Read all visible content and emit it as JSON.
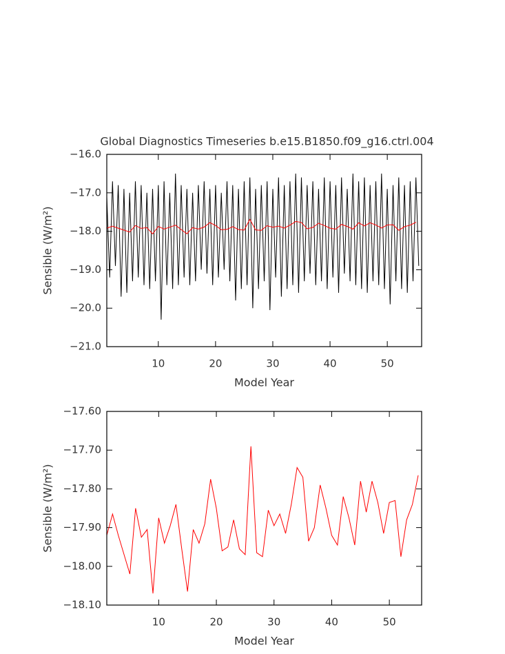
{
  "chart_data": [
    {
      "type": "line",
      "title": "Global Diagnostics Timeseries b.e15.B1850.f09_g16.ctrl.004",
      "x_label": "Model Year",
      "y_label": "Sensible (W/m²)",
      "xlim": [
        1,
        56
      ],
      "xticks": [
        10,
        20,
        30,
        40,
        50
      ],
      "ylim": [
        -21,
        -16
      ],
      "yticks": [
        {
          "value": -21,
          "label": "−21.0"
        },
        {
          "value": -20,
          "label": "−20.0"
        },
        {
          "value": -19,
          "label": "−19.0"
        },
        {
          "value": -18,
          "label": "−18.0"
        },
        {
          "value": -17,
          "label": "−17.0"
        },
        {
          "value": -16,
          "label": "−16.0"
        }
      ],
      "series": [
        {
          "color": "#000000",
          "x": [
            1,
            1.5,
            2,
            2.5,
            3,
            3.5,
            4,
            4.5,
            5,
            5.5,
            6,
            6.5,
            7,
            7.5,
            8,
            8.5,
            9,
            9.5,
            10,
            10.5,
            11,
            11.5,
            12,
            12.5,
            13,
            13.5,
            14,
            14.5,
            15,
            15.5,
            16,
            16.5,
            17,
            17.5,
            18,
            18.5,
            19,
            19.5,
            20,
            20.5,
            21,
            21.5,
            22,
            22.5,
            23,
            23.5,
            24,
            24.5,
            25,
            25.5,
            26,
            26.5,
            27,
            27.5,
            28,
            28.5,
            29,
            29.5,
            30,
            30.5,
            31,
            31.5,
            32,
            32.5,
            33,
            33.5,
            34,
            34.5,
            35,
            35.5,
            36,
            36.5,
            37,
            37.5,
            38,
            38.5,
            39,
            39.5,
            40,
            40.5,
            41,
            41.5,
            42,
            42.5,
            43,
            43.5,
            44,
            44.5,
            45,
            45.5,
            46,
            46.5,
            47,
            47.5,
            48,
            48.5,
            49,
            49.5,
            50,
            50.5,
            51,
            51.5,
            52,
            52.5,
            53,
            53.5,
            54,
            54.5,
            55,
            55.5
          ],
          "values": [
            -17.1,
            -19.2,
            -16.7,
            -18.9,
            -16.8,
            -19.7,
            -16.9,
            -19.6,
            -17.0,
            -19.3,
            -16.7,
            -19.2,
            -16.8,
            -19.4,
            -17.0,
            -19.5,
            -16.9,
            -19.3,
            -16.8,
            -20.3,
            -16.7,
            -19.4,
            -17.0,
            -19.5,
            -16.5,
            -19.4,
            -16.8,
            -19.2,
            -16.9,
            -19.4,
            -17.0,
            -19.3,
            -16.8,
            -19.0,
            -16.7,
            -19.1,
            -16.9,
            -19.4,
            -16.8,
            -19.2,
            -17.0,
            -19.0,
            -16.7,
            -19.3,
            -16.8,
            -19.8,
            -16.9,
            -19.5,
            -16.7,
            -19.4,
            -16.6,
            -20.0,
            -16.9,
            -19.5,
            -16.8,
            -19.3,
            -16.7,
            -20.05,
            -16.9,
            -19.2,
            -16.6,
            -19.7,
            -16.8,
            -19.5,
            -16.7,
            -19.4,
            -16.5,
            -19.6,
            -16.6,
            -19.3,
            -16.8,
            -19.1,
            -16.7,
            -19.4,
            -16.9,
            -19.3,
            -16.6,
            -19.5,
            -16.7,
            -19.2,
            -16.8,
            -19.6,
            -16.6,
            -19.1,
            -16.9,
            -19.3,
            -16.5,
            -19.4,
            -16.7,
            -19.5,
            -16.6,
            -19.6,
            -16.8,
            -19.3,
            -16.7,
            -19.4,
            -16.5,
            -19.5,
            -16.9,
            -19.9,
            -16.8,
            -19.3,
            -16.6,
            -19.5,
            -16.8,
            -19.6,
            -16.7,
            -19.3,
            -16.6,
            -18.9
          ]
        },
        {
          "color": "#ff0000",
          "x": [
            1,
            2,
            3,
            4,
            5,
            6,
            7,
            8,
            9,
            10,
            11,
            12,
            13,
            14,
            15,
            16,
            17,
            18,
            19,
            20,
            21,
            22,
            23,
            24,
            25,
            26,
            27,
            28,
            29,
            30,
            31,
            32,
            33,
            34,
            35,
            36,
            37,
            38,
            39,
            40,
            41,
            42,
            43,
            44,
            45,
            46,
            47,
            48,
            49,
            50,
            51,
            52,
            53,
            54,
            55
          ],
          "values": [
            -17.92,
            -17.865,
            -17.92,
            -17.97,
            -18.02,
            -17.85,
            -17.925,
            -17.905,
            -18.07,
            -17.875,
            -17.94,
            -17.895,
            -17.84,
            -17.955,
            -18.065,
            -17.905,
            -17.94,
            -17.89,
            -17.775,
            -17.85,
            -17.96,
            -17.95,
            -17.88,
            -17.955,
            -17.97,
            -17.69,
            -17.965,
            -17.975,
            -17.855,
            -17.895,
            -17.865,
            -17.915,
            -17.84,
            -17.745,
            -17.77,
            -17.935,
            -17.9,
            -17.79,
            -17.85,
            -17.92,
            -17.945,
            -17.82,
            -17.875,
            -17.945,
            -17.78,
            -17.86,
            -17.78,
            -17.835,
            -17.915,
            -17.835,
            -17.83,
            -17.975,
            -17.88,
            -17.84,
            -17.765
          ]
        }
      ]
    },
    {
      "type": "line",
      "x_label": "Model Year",
      "y_label": "Sensible (W/m²)",
      "xlim": [
        1,
        55.6
      ],
      "xticks": [
        10,
        20,
        30,
        40,
        50
      ],
      "ylim": [
        -18.1,
        -17.6
      ],
      "yticks": [
        {
          "value": -18.1,
          "label": "−18.10"
        },
        {
          "value": -18.0,
          "label": "−18.00"
        },
        {
          "value": -17.9,
          "label": "−17.90"
        },
        {
          "value": -17.8,
          "label": "−17.80"
        },
        {
          "value": -17.7,
          "label": "−17.70"
        },
        {
          "value": -17.6,
          "label": "−17.60"
        }
      ],
      "series": [
        {
          "color": "#ff0000",
          "x": [
            1,
            2,
            3,
            4,
            5,
            6,
            7,
            8,
            9,
            10,
            11,
            12,
            13,
            14,
            15,
            16,
            17,
            18,
            19,
            20,
            21,
            22,
            23,
            24,
            25,
            26,
            27,
            28,
            29,
            30,
            31,
            32,
            33,
            34,
            35,
            36,
            37,
            38,
            39,
            40,
            41,
            42,
            43,
            44,
            45,
            46,
            47,
            48,
            49,
            50,
            51,
            52,
            53,
            54,
            55
          ],
          "values": [
            -17.92,
            -17.865,
            -17.92,
            -17.97,
            -18.02,
            -17.85,
            -17.925,
            -17.905,
            -18.07,
            -17.875,
            -17.94,
            -17.895,
            -17.84,
            -17.955,
            -18.065,
            -17.905,
            -17.94,
            -17.89,
            -17.775,
            -17.85,
            -17.96,
            -17.95,
            -17.88,
            -17.955,
            -17.97,
            -17.69,
            -17.965,
            -17.975,
            -17.855,
            -17.895,
            -17.865,
            -17.915,
            -17.84,
            -17.745,
            -17.77,
            -17.935,
            -17.9,
            -17.79,
            -17.85,
            -17.92,
            -17.945,
            -17.82,
            -17.875,
            -17.945,
            -17.78,
            -17.86,
            -17.78,
            -17.835,
            -17.915,
            -17.835,
            -17.83,
            -17.975,
            -17.88,
            -17.84,
            -17.765
          ]
        }
      ]
    }
  ]
}
